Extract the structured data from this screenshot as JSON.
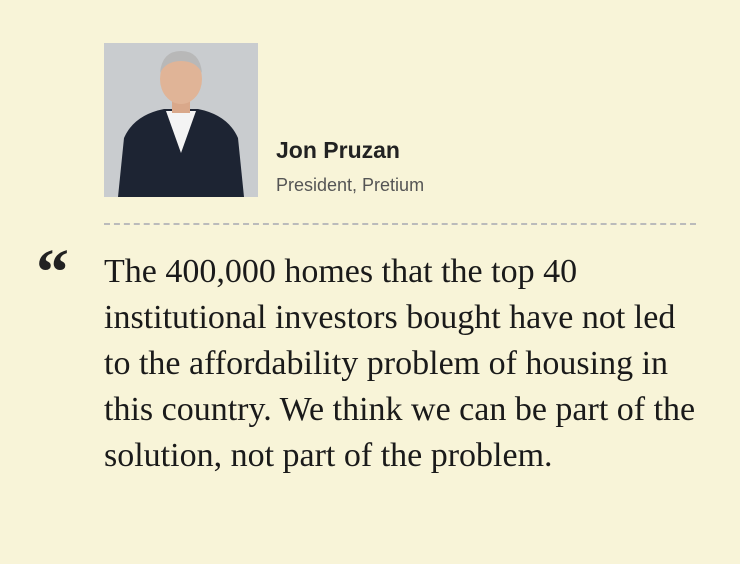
{
  "person": {
    "name": "Jon Pruzan",
    "title": "President, Pretium"
  },
  "quote": {
    "mark": "“",
    "text": "The 400,000 homes that the top 40 institutional investors bought have not led to the affordability problem of housing in this country. We think we can be part of the solution, not part of the problem."
  }
}
